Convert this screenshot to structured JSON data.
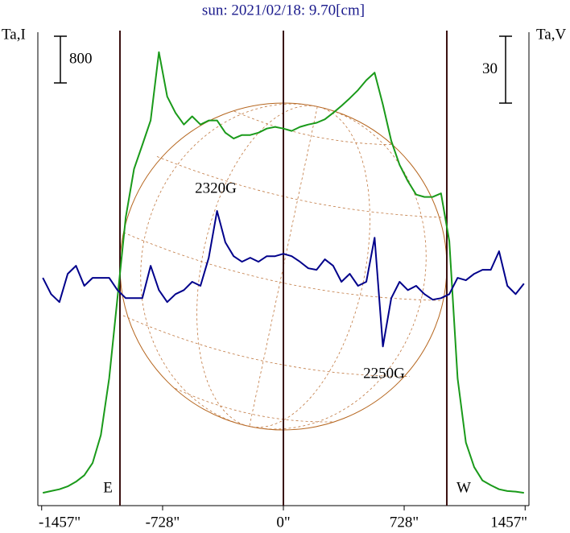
{
  "chart_data": {
    "type": "line",
    "title": "sun: 2021/02/18: 9.70[cm]",
    "ylabel": "Ta,I",
    "y2label": "Ta,V",
    "x": [
      -1450,
      -1400,
      -1350,
      -1300,
      -1250,
      -1200,
      -1150,
      -1100,
      -1050,
      -1000,
      -950,
      -900,
      -850,
      -800,
      -750,
      -700,
      -650,
      -600,
      -550,
      -500,
      -450,
      -400,
      -350,
      -300,
      -250,
      -200,
      -150,
      -100,
      -50,
      0,
      50,
      100,
      150,
      200,
      250,
      300,
      350,
      400,
      450,
      500,
      550,
      600,
      650,
      700,
      750,
      800,
      850,
      900,
      950,
      1000,
      1050,
      1100,
      1150,
      1200,
      1250,
      1300,
      1350,
      1400,
      1450
    ],
    "series": [
      {
        "name": "Ta,I",
        "color": "#1a9a1a",
        "values": [
          220,
          250,
          280,
          330,
          410,
          520,
          730,
          1210,
          2180,
          3560,
          4940,
          5770,
          6180,
          6600,
          7770,
          7010,
          6730,
          6530,
          6670,
          6530,
          6600,
          6600,
          6390,
          6290,
          6350,
          6350,
          6390,
          6460,
          6490,
          6460,
          6420,
          6490,
          6530,
          6560,
          6620,
          6730,
          6850,
          6980,
          7120,
          7290,
          7420,
          6870,
          6250,
          5840,
          5560,
          5330,
          5290,
          5290,
          5350,
          4530,
          2180,
          1080,
          660,
          430,
          350,
          280,
          250,
          240,
          220
        ]
      },
      {
        "name": "Ta,V",
        "color": "#00008b",
        "axis": "y2",
        "values": [
          2.2,
          -5.1,
          -8.7,
          4.0,
          7.6,
          -1.4,
          2.2,
          2.2,
          2.2,
          -3.3,
          -6.9,
          -6.9,
          -6.9,
          7.6,
          -3.3,
          -8.7,
          -5.1,
          -3.3,
          0.4,
          -1.4,
          11.2,
          32.2,
          18.1,
          11.9,
          9.4,
          11.2,
          9.4,
          11.9,
          11.9,
          13.0,
          11.9,
          9.4,
          6.5,
          5.8,
          10.5,
          7.6,
          0.4,
          4.0,
          -1.4,
          0.4,
          20.2,
          -28.6,
          -6.9,
          0.4,
          -3.3,
          -1.4,
          -5.1,
          -7.6,
          -6.9,
          -5.1,
          2.2,
          1.1,
          4.0,
          5.8,
          5.8,
          14.1,
          -1.4,
          -5.1,
          -0.4
        ]
      }
    ],
    "xlim": [
      -1480,
      1480
    ],
    "xticks": [
      {
        "value": -1457,
        "label": "-1457\""
      },
      {
        "value": -728,
        "label": "-728\""
      },
      {
        "value": 0,
        "label": "0\""
      },
      {
        "value": 728,
        "label": "728\""
      },
      {
        "value": 1457,
        "label": "1457\""
      }
    ],
    "ylim": [
      0,
      8250
    ],
    "y2lim": [
      -100,
      116
    ],
    "vlines": [
      -985,
      0,
      985
    ],
    "scale_bars": [
      {
        "value": 800,
        "axis": "y"
      },
      {
        "value": 30,
        "axis": "y2"
      }
    ],
    "annotations": [
      "2320G",
      "2250G",
      "E",
      "W"
    ]
  }
}
